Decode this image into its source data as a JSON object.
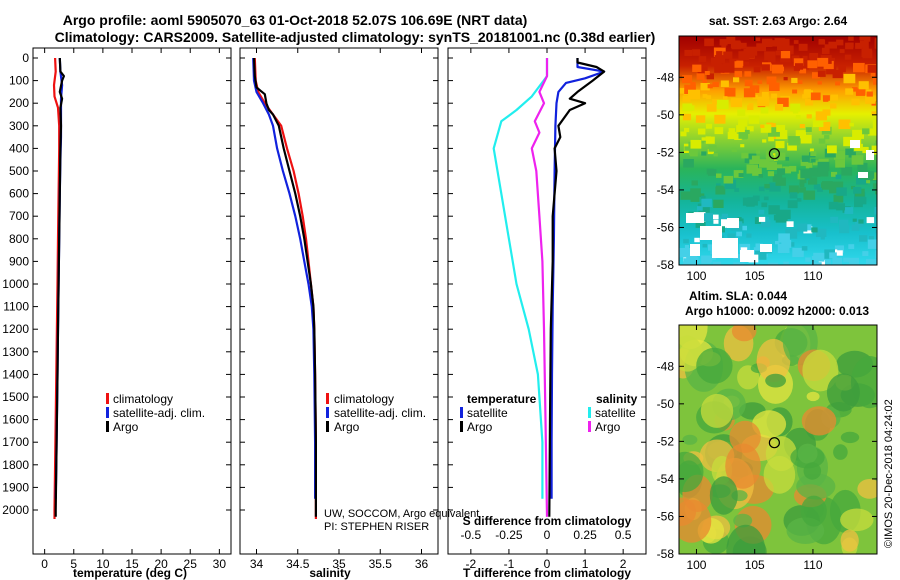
{
  "figure": {
    "title_line1": "Argo profile: aoml 5905070_63 01-Oct-2018 52.07S 106.69E (NRT data)",
    "title_line2": "Climatology: CARS2009. Satellite-adjusted climatology: synTS_20181001.nc (0.38d earlier)",
    "credit_line1": "UW, SOCCOM, Argo equivalent",
    "credit_line2": "PI: STEPHEN RISER",
    "watermark": "©IMOS 20-Dec-2018 04:24:02",
    "colors": {
      "red": "#ee1111",
      "blue": "#1122dd",
      "black": "#000000",
      "cyan": "#22eeee",
      "magenta": "#ee22ee"
    }
  },
  "chart_data": [
    {
      "id": "temperature",
      "type": "line",
      "xlabel": "temperature (deg C)",
      "ylabel": "",
      "xlim": [
        -2,
        32
      ],
      "ylim": [
        2075,
        0
      ],
      "xticks": [
        "0",
        "5",
        "10",
        "15",
        "20",
        "25",
        "30"
      ],
      "xtick_values": [
        0,
        5,
        10,
        15,
        20,
        25,
        30
      ],
      "yticks": [
        "0",
        "100",
        "200",
        "300",
        "400",
        "500",
        "600",
        "700",
        "800",
        "900",
        "1000",
        "1100",
        "1200",
        "1300",
        "1400",
        "1500",
        "1600",
        "1700",
        "1800",
        "1900",
        "2000"
      ],
      "ytick_values": [
        0,
        100,
        200,
        300,
        400,
        500,
        600,
        700,
        800,
        900,
        1000,
        1100,
        1200,
        1300,
        1400,
        1500,
        1600,
        1700,
        1800,
        1900,
        2000
      ],
      "legend": [
        "climatology",
        "satellite-adj. clim.",
        "Argo"
      ],
      "series": [
        {
          "name": "climatology",
          "color": "red",
          "points": [
            [
              1.8,
              0
            ],
            [
              1.9,
              60
            ],
            [
              1.6,
              120
            ],
            [
              1.7,
              170
            ],
            [
              2.3,
              220
            ],
            [
              2.5,
              300
            ],
            [
              2.5,
              400
            ],
            [
              2.4,
              600
            ],
            [
              2.3,
              800
            ],
            [
              2.2,
              1000
            ],
            [
              2.1,
              1200
            ],
            [
              2.0,
              1400
            ],
            [
              1.9,
              1600
            ],
            [
              1.8,
              1800
            ],
            [
              1.7,
              2000
            ],
            [
              1.7,
              2040
            ]
          ]
        },
        {
          "name": "satellite-adj. clim.",
          "color": "blue",
          "points": [
            [
              2.6,
              0
            ],
            [
              2.7,
              60
            ],
            [
              3.0,
              120
            ],
            [
              2.8,
              180
            ],
            [
              2.8,
              250
            ],
            [
              2.8,
              350
            ],
            [
              2.7,
              450
            ],
            [
              2.6,
              600
            ],
            [
              2.5,
              800
            ],
            [
              2.4,
              1000
            ],
            [
              2.3,
              1200
            ],
            [
              2.2,
              1400
            ],
            [
              2.1,
              1600
            ],
            [
              2.0,
              1800
            ],
            [
              1.9,
              1950
            ]
          ]
        },
        {
          "name": "Argo",
          "color": "black",
          "points": [
            [
              2.6,
              0
            ],
            [
              2.7,
              60
            ],
            [
              3.3,
              80
            ],
            [
              3.0,
              100
            ],
            [
              2.6,
              150
            ],
            [
              3.0,
              180
            ],
            [
              2.7,
              220
            ],
            [
              2.8,
              300
            ],
            [
              2.7,
              400
            ],
            [
              2.6,
              600
            ],
            [
              2.5,
              800
            ],
            [
              2.4,
              1000
            ],
            [
              2.3,
              1200
            ],
            [
              2.2,
              1400
            ],
            [
              2.1,
              1600
            ],
            [
              2.0,
              1800
            ],
            [
              1.9,
              2000
            ],
            [
              1.9,
              2030
            ]
          ]
        }
      ]
    },
    {
      "id": "salinity",
      "type": "line",
      "xlabel": "salinity",
      "xlim": [
        33.8,
        36.2
      ],
      "ylim": [
        2075,
        0
      ],
      "xticks": [
        "34",
        "34.5",
        "35",
        "35.5",
        "36"
      ],
      "xtick_values": [
        34,
        34.5,
        35,
        35.5,
        36
      ],
      "legend": [
        "climatology",
        "satellite-adj. clim.",
        "Argo"
      ],
      "series": [
        {
          "name": "climatology",
          "color": "red",
          "points": [
            [
              33.98,
              0
            ],
            [
              33.99,
              100
            ],
            [
              34.02,
              150
            ],
            [
              34.1,
              200
            ],
            [
              34.2,
              250
            ],
            [
              34.3,
              300
            ],
            [
              34.37,
              400
            ],
            [
              34.45,
              500
            ],
            [
              34.51,
              600
            ],
            [
              34.56,
              700
            ],
            [
              34.6,
              800
            ],
            [
              34.63,
              900
            ],
            [
              34.66,
              1000
            ],
            [
              34.69,
              1100
            ],
            [
              34.7,
              1200
            ],
            [
              34.71,
              1400
            ],
            [
              34.72,
              1700
            ],
            [
              34.72,
              2040
            ]
          ]
        },
        {
          "name": "satellite-adj. clim.",
          "color": "blue",
          "points": [
            [
              33.96,
              0
            ],
            [
              33.97,
              100
            ],
            [
              34.0,
              150
            ],
            [
              34.08,
              200
            ],
            [
              34.15,
              250
            ],
            [
              34.2,
              300
            ],
            [
              34.25,
              400
            ],
            [
              34.32,
              500
            ],
            [
              34.4,
              600
            ],
            [
              34.47,
              700
            ],
            [
              34.53,
              800
            ],
            [
              34.58,
              900
            ],
            [
              34.63,
              1000
            ],
            [
              34.67,
              1100
            ],
            [
              34.69,
              1200
            ],
            [
              34.7,
              1400
            ],
            [
              34.71,
              1700
            ],
            [
              34.71,
              1950
            ]
          ]
        },
        {
          "name": "Argo",
          "color": "black",
          "points": [
            [
              33.97,
              0
            ],
            [
              33.98,
              80
            ],
            [
              34.0,
              130
            ],
            [
              34.05,
              145
            ],
            [
              34.1,
              160
            ],
            [
              34.12,
              200
            ],
            [
              34.15,
              230
            ],
            [
              34.2,
              250
            ],
            [
              34.27,
              300
            ],
            [
              34.33,
              400
            ],
            [
              34.4,
              500
            ],
            [
              34.47,
              600
            ],
            [
              34.53,
              700
            ],
            [
              34.58,
              800
            ],
            [
              34.62,
              900
            ],
            [
              34.66,
              1000
            ],
            [
              34.69,
              1100
            ],
            [
              34.7,
              1200
            ],
            [
              34.71,
              1400
            ],
            [
              34.72,
              1700
            ],
            [
              34.72,
              2030
            ]
          ]
        }
      ]
    },
    {
      "id": "difference",
      "type": "line",
      "xlabel": "T difference from climatology",
      "xlabel_top": "S difference from climatology",
      "xlim": [
        -2.6,
        2.6
      ],
      "ylim": [
        2075,
        0
      ],
      "xticks": [
        "-2",
        "-1",
        "0",
        "1",
        "2"
      ],
      "xtick_values": [
        -2,
        -1,
        0,
        1,
        2
      ],
      "xticks_top": [
        "-0.5",
        "-0.25",
        "0",
        "0.25",
        "0.5"
      ],
      "xtick_top_values": [
        -0.5,
        -0.25,
        0,
        0.25,
        0.5
      ],
      "legend_temperature_title": "temperature",
      "legend_salinity_title": "salinity",
      "legend_temperature": [
        "satellite",
        "Argo"
      ],
      "legend_salinity": [
        "satellite",
        "Argo"
      ],
      "series": [
        {
          "name": "T satellite",
          "color": "blue",
          "points": [
            [
              0.8,
              0
            ],
            [
              0.8,
              40
            ],
            [
              1.5,
              60
            ],
            [
              1.0,
              90
            ],
            [
              0.5,
              110
            ],
            [
              0.3,
              150
            ],
            [
              0.25,
              200
            ],
            [
              0.22,
              300
            ],
            [
              0.2,
              500
            ],
            [
              0.18,
              800
            ],
            [
              0.15,
              1100
            ],
            [
              0.13,
              1400
            ],
            [
              0.12,
              1700
            ],
            [
              0.12,
              1950
            ]
          ]
        },
        {
          "name": "T Argo",
          "color": "black",
          "points": [
            [
              0.8,
              0
            ],
            [
              0.8,
              20
            ],
            [
              1.3,
              40
            ],
            [
              1.5,
              60
            ],
            [
              1.2,
              100
            ],
            [
              0.8,
              150
            ],
            [
              0.6,
              180
            ],
            [
              1.0,
              200
            ],
            [
              0.6,
              230
            ],
            [
              0.3,
              300
            ],
            [
              0.35,
              350
            ],
            [
              0.2,
              400
            ],
            [
              0.25,
              500
            ],
            [
              0.15,
              700
            ],
            [
              0.15,
              900
            ],
            [
              0.1,
              1200
            ],
            [
              0.08,
              1600
            ],
            [
              0.06,
              2030
            ]
          ]
        },
        {
          "name": "S satellite",
          "color": "cyan",
          "points": [
            [
              0.0,
              0
            ],
            [
              0.0,
              80
            ],
            [
              -0.1,
              170
            ],
            [
              -0.2,
              230
            ],
            [
              -0.3,
              280
            ],
            [
              -0.35,
              400
            ],
            [
              -0.3,
              600
            ],
            [
              -0.25,
              800
            ],
            [
              -0.2,
              1000
            ],
            [
              -0.12,
              1200
            ],
            [
              -0.06,
              1400
            ],
            [
              -0.03,
              1700
            ],
            [
              -0.03,
              1950
            ]
          ]
        },
        {
          "name": "S Argo",
          "color": "magenta",
          "points": [
            [
              0.0,
              0
            ],
            [
              0.0,
              80
            ],
            [
              -0.05,
              150
            ],
            [
              -0.02,
              200
            ],
            [
              -0.08,
              280
            ],
            [
              -0.05,
              330
            ],
            [
              -0.1,
              400
            ],
            [
              -0.07,
              500
            ],
            [
              -0.05,
              700
            ],
            [
              -0.03,
              900
            ],
            [
              -0.02,
              1200
            ],
            [
              -0.01,
              1600
            ],
            [
              0.0,
              2030
            ]
          ]
        }
      ]
    },
    {
      "id": "sst_map",
      "type": "heatmap",
      "title": "sat. SST: 2.63 Argo: 2.64",
      "xlim": [
        98.5,
        115.5
      ],
      "ylim": [
        -58,
        -45.8
      ],
      "xticks": [
        "100",
        "105",
        "110"
      ],
      "xtick_values": [
        100,
        105,
        110
      ],
      "yticks": [
        "-48",
        "-50",
        "-52",
        "-54",
        "-56",
        "-58"
      ],
      "ytick_values": [
        -48,
        -50,
        -52,
        -54,
        -56,
        -58
      ],
      "marker": [
        106.69,
        -52.07
      ]
    },
    {
      "id": "sla_map",
      "type": "heatmap",
      "title_line1": "Altim. SLA: 0.044",
      "title_line2": "Argo h1000: 0.0092 h2000: 0.013",
      "xlim": [
        98.5,
        115.5
      ],
      "ylim": [
        -58,
        -45.8
      ],
      "xticks": [
        "100",
        "105",
        "110"
      ],
      "xtick_values": [
        100,
        105,
        110
      ],
      "yticks": [
        "-48",
        "-50",
        "-52",
        "-54",
        "-56",
        "-58"
      ],
      "ytick_values": [
        -48,
        -50,
        -52,
        -54,
        -56,
        -58
      ],
      "marker": [
        106.69,
        -52.07
      ]
    }
  ]
}
